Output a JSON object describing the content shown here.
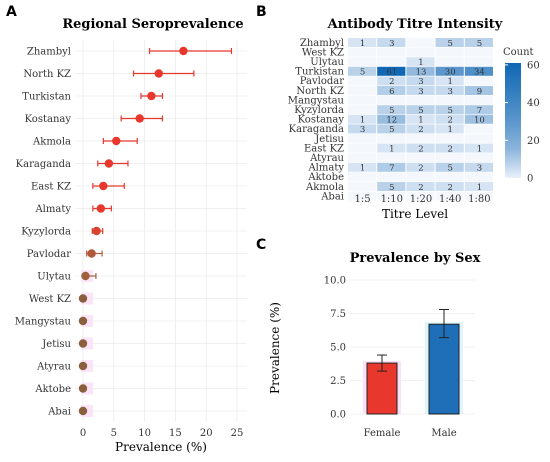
{
  "panels": {
    "a_letter": "A",
    "b_letter": "B",
    "c_letter": "C"
  },
  "chart_data": [
    {
      "type": "scatter",
      "title": "Regional Seroprevalence",
      "xlabel": "Prevalence (%)",
      "ylabel": "",
      "xlim": [
        -1,
        25
      ],
      "xticks": [
        0,
        5,
        10,
        15,
        20,
        25
      ],
      "grid": true,
      "categories": [
        "Zhambyl",
        "North KZ",
        "Turkistan",
        "Kostanay",
        "Akmola",
        "Karaganda",
        "East KZ",
        "Almaty",
        "Kyzylorda",
        "Pavlodar",
        "Ulytau",
        "West KZ",
        "Mangystau",
        "Jetisu",
        "Atyrau",
        "Aktobe",
        "Abai"
      ],
      "values": [
        16.3,
        12.3,
        11.1,
        9.2,
        5.4,
        4.2,
        3.3,
        2.9,
        2.2,
        1.4,
        0.4,
        0.0,
        0.0,
        0.0,
        0.0,
        0.0,
        0.0
      ],
      "ci_low": [
        10.8,
        8.2,
        9.4,
        6.2,
        3.3,
        2.4,
        1.6,
        1.6,
        1.5,
        0.6,
        0.0,
        0.0,
        0.0,
        0.0,
        0.0,
        0.0,
        0.0
      ],
      "ci_high": [
        24.1,
        18.0,
        12.9,
        12.9,
        8.8,
        7.3,
        6.7,
        4.6,
        3.2,
        3.1,
        2.1,
        0.0,
        0.0,
        0.0,
        0.0,
        0.0,
        0.0
      ],
      "colors": [
        "#e8372c",
        "#e8372c",
        "#e8372c",
        "#e8372c",
        "#e8372c",
        "#e8372c",
        "#e8372c",
        "#e8372c",
        "#d9442e",
        "#b05a3c",
        "#a0603e",
        "#8b5e3c",
        "#8b5e3c",
        "#8b5e3c",
        "#8b5e3c",
        "#8b5e3c",
        "#8b5e3c"
      ]
    },
    {
      "type": "heatmap",
      "title": "Antibody Titre Intensity",
      "xlabel": "Titre Level",
      "ylabel": "",
      "legend_title": "Count",
      "legend_ticks": [
        0,
        20,
        40,
        60
      ],
      "legend_range": [
        0,
        61
      ],
      "x": [
        "1:5",
        "1:10",
        "1:20",
        "1:40",
        "1:80"
      ],
      "y": [
        "Zhambyl",
        "West KZ",
        "Ulytau",
        "Turkistan",
        "Pavlodar",
        "North KZ",
        "Mangystau",
        "Kyzylorda",
        "Kostanay",
        "Karaganda",
        "Jetisu",
        "East KZ",
        "Atyrau",
        "Almaty",
        "Aktobe",
        "Akmola",
        "Abai"
      ],
      "values": [
        [
          1,
          3,
          null,
          5,
          5
        ],
        [
          null,
          null,
          null,
          null,
          null
        ],
        [
          null,
          null,
          1,
          null,
          null
        ],
        [
          5,
          61,
          13,
          30,
          34
        ],
        [
          null,
          2,
          3,
          1,
          null
        ],
        [
          null,
          6,
          3,
          3,
          9
        ],
        [
          null,
          null,
          null,
          null,
          null
        ],
        [
          null,
          5,
          5,
          5,
          7
        ],
        [
          1,
          12,
          1,
          2,
          10
        ],
        [
          3,
          5,
          2,
          1,
          null
        ],
        [
          null,
          null,
          null,
          null,
          null
        ],
        [
          null,
          1,
          2,
          2,
          1
        ],
        [
          null,
          null,
          null,
          null,
          null
        ],
        [
          1,
          7,
          2,
          5,
          3
        ],
        [
          null,
          null,
          null,
          null,
          null
        ],
        [
          null,
          5,
          2,
          2,
          1
        ],
        [
          null,
          null,
          null,
          null,
          null
        ]
      ]
    },
    {
      "type": "bar",
      "title": "Prevalence by Sex",
      "xlabel": "",
      "ylabel": "Prevalence (%)",
      "ylim": [
        0,
        10
      ],
      "yticks": [
        "0.0",
        "2.5",
        "5.0",
        "7.5",
        "10.0"
      ],
      "categories": [
        "Female",
        "Male"
      ],
      "values": [
        3.8,
        6.7
      ],
      "err_low": [
        3.2,
        5.7
      ],
      "err_high": [
        4.4,
        7.8
      ],
      "colors": [
        "#e8372c",
        "#1f6fb8"
      ]
    }
  ]
}
